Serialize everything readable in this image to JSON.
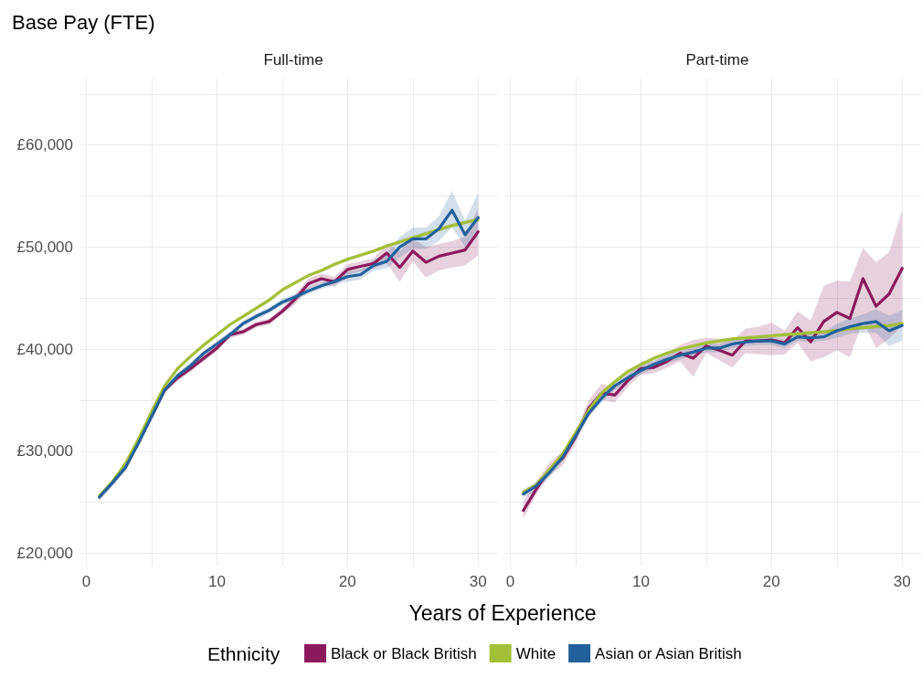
{
  "chart_data": [
    {
      "type": "line",
      "title": "Base Pay (FTE)",
      "subtitle": "Full-time",
      "xlabel": "Years of Experience",
      "legend_title": "Ethnicity",
      "legend": "bottom",
      "grid": true,
      "line_style": "solid",
      "marker": "none",
      "x": [
        1,
        2,
        3,
        4,
        5,
        6,
        7,
        8,
        9,
        10,
        11,
        12,
        13,
        14,
        15,
        16,
        17,
        18,
        19,
        20,
        21,
        22,
        23,
        24,
        25,
        26,
        27,
        28,
        29,
        30
      ],
      "xlim": [
        -0.45,
        31.45
      ],
      "xticks": [
        0,
        {
          "value": 5,
          "label": null
        },
        10,
        {
          "value": 15,
          "label": null
        },
        20,
        {
          "value": 25,
          "label": null
        },
        30
      ],
      "ylim": [
        18700,
        66500
      ],
      "yticks": [
        {
          "value": 20000,
          "label": "£20,000"
        },
        {
          "value": 25000,
          "label": null
        },
        {
          "value": 30000,
          "label": "£30,000"
        },
        {
          "value": 35000,
          "label": null
        },
        {
          "value": 40000,
          "label": "£40,000"
        },
        {
          "value": 45000,
          "label": null
        },
        {
          "value": 50000,
          "label": "£50,000"
        },
        {
          "value": 55000,
          "label": null
        },
        {
          "value": 60000,
          "label": "£60,000"
        },
        {
          "value": 65000,
          "label": null
        }
      ],
      "series": [
        {
          "name": "Black or Black British",
          "color": "#8b1a5c",
          "values": [
            null,
            null,
            null,
            null,
            33400,
            36000,
            37200,
            38100,
            39100,
            40100,
            41400,
            41700,
            42400,
            42700,
            43700,
            44900,
            46400,
            46900,
            46600,
            47800,
            48100,
            48400,
            49400,
            48000,
            49600,
            48500,
            49100,
            49400,
            49700,
            51500
          ],
          "lower": [
            25200,
            26600,
            28100,
            30500,
            33100,
            35700,
            36900,
            37800,
            38800,
            39800,
            41100,
            41400,
            42100,
            42400,
            43400,
            44400,
            45900,
            46400,
            46100,
            47300,
            47600,
            47900,
            48400,
            46600,
            48600,
            47000,
            47700,
            48000,
            48200,
            49200
          ],
          "upper": [
            25800,
            27200,
            28700,
            31100,
            33700,
            36300,
            37500,
            38400,
            39400,
            40400,
            41700,
            42000,
            42700,
            43000,
            44000,
            45400,
            46900,
            47400,
            47100,
            48300,
            48600,
            48900,
            50300,
            49600,
            50800,
            50000,
            50300,
            50600,
            51000,
            53800
          ]
        },
        {
          "name": "White",
          "color": "#a3bf38",
          "values": [
            25600,
            27000,
            28800,
            31200,
            33900,
            36400,
            38100,
            39300,
            40400,
            41400,
            42400,
            43200,
            44000,
            44800,
            45800,
            46500,
            47200,
            47700,
            48300,
            48800,
            49200,
            49600,
            50100,
            50500,
            50900,
            51300,
            51700,
            52100,
            52400,
            52700
          ],
          "lower": [
            25400,
            26800,
            28600,
            31000,
            33700,
            36200,
            37900,
            39100,
            40200,
            41200,
            42200,
            43000,
            43800,
            44600,
            45600,
            46300,
            47000,
            47500,
            48100,
            48600,
            49000,
            49400,
            49900,
            50300,
            50700,
            51100,
            51500,
            51900,
            52200,
            52500
          ],
          "upper": [
            25800,
            27200,
            29000,
            31400,
            34100,
            36600,
            38300,
            39500,
            40600,
            41600,
            42600,
            43400,
            44200,
            45000,
            46000,
            46700,
            47400,
            47900,
            48500,
            49000,
            49400,
            49800,
            50300,
            50700,
            51100,
            51500,
            51900,
            52300,
            52600,
            52900
          ]
        },
        {
          "name": "Asian or Asian British",
          "color": "#23619c",
          "values": [
            25500,
            26900,
            28400,
            30800,
            33400,
            36000,
            37400,
            38400,
            39600,
            40500,
            41400,
            42500,
            43200,
            43800,
            44600,
            45100,
            45700,
            46200,
            46600,
            47100,
            47300,
            48200,
            48600,
            50000,
            50800,
            50800,
            51800,
            53600,
            51200,
            52900
          ],
          "lower": [
            25200,
            26600,
            28100,
            30500,
            33100,
            35700,
            37100,
            38100,
            39300,
            40200,
            41100,
            42200,
            42900,
            43500,
            44300,
            44800,
            45400,
            45900,
            46300,
            46600,
            46800,
            47700,
            47900,
            49000,
            49800,
            49800,
            50600,
            51900,
            50000,
            51000
          ],
          "upper": [
            25800,
            27200,
            28700,
            31100,
            33700,
            36300,
            37700,
            38700,
            39900,
            40800,
            41700,
            42800,
            43500,
            44100,
            44900,
            45400,
            46000,
            46500,
            46900,
            47600,
            47800,
            48700,
            49400,
            51000,
            51900,
            51900,
            53000,
            55500,
            52600,
            55300
          ]
        }
      ]
    },
    {
      "type": "line",
      "subtitle": "Part-time",
      "grid": true,
      "line_style": "solid",
      "marker": "none",
      "tick_labels": "x",
      "x": [
        1,
        2,
        3,
        4,
        5,
        6,
        7,
        8,
        9,
        10,
        11,
        12,
        13,
        14,
        15,
        16,
        17,
        18,
        19,
        20,
        21,
        22,
        23,
        24,
        25,
        26,
        27,
        28,
        29,
        30
      ],
      "xlim": [
        -0.45,
        31.45
      ],
      "xticks": [
        0,
        {
          "value": 5,
          "label": null
        },
        10,
        {
          "value": 15,
          "label": null
        },
        20,
        {
          "value": 25,
          "label": null
        },
        30
      ],
      "ylim": [
        18700,
        66500
      ],
      "yticks": [
        {
          "value": 20000,
          "label": null
        },
        {
          "value": 25000,
          "label": null
        },
        {
          "value": 30000,
          "label": null
        },
        {
          "value": 35000,
          "label": null
        },
        {
          "value": 40000,
          "label": null
        },
        {
          "value": 45000,
          "label": null
        },
        {
          "value": 50000,
          "label": null
        },
        {
          "value": 55000,
          "label": null
        },
        {
          "value": 60000,
          "label": null
        },
        {
          "value": 65000,
          "label": null
        }
      ],
      "series": [
        {
          "color": "#8b1a5c",
          "values": [
            24200,
            26300,
            28200,
            29300,
            31400,
            34200,
            35700,
            35500,
            36900,
            38100,
            38200,
            38800,
            39600,
            39100,
            40300,
            39900,
            39400,
            40800,
            40800,
            40900,
            40600,
            42100,
            40700,
            42700,
            43600,
            43000,
            46900,
            44200,
            45400,
            47900
          ],
          "lower": [
            23400,
            25800,
            27600,
            28600,
            30800,
            33600,
            35000,
            34800,
            36300,
            37500,
            37600,
            38200,
            38800,
            37300,
            39600,
            38900,
            38200,
            39600,
            39500,
            39400,
            39500,
            40600,
            38800,
            39200,
            39900,
            39200,
            42800,
            40100,
            41000,
            42300
          ],
          "upper": [
            25100,
            27000,
            28900,
            30000,
            32000,
            35000,
            36600,
            36200,
            37500,
            38700,
            38800,
            39600,
            40400,
            40900,
            41100,
            41000,
            40800,
            42000,
            42200,
            42600,
            41800,
            43700,
            42800,
            46200,
            46700,
            46600,
            49900,
            48500,
            49500,
            53600
          ]
        },
        {
          "color": "#a3bf38",
          "values": [
            26000,
            26700,
            28200,
            29700,
            31800,
            34000,
            35700,
            36800,
            37800,
            38500,
            39100,
            39600,
            40000,
            40300,
            40600,
            40800,
            41000,
            41100,
            41200,
            41300,
            41400,
            41500,
            41600,
            41700,
            41800,
            42000,
            42100,
            42200,
            42300,
            42500
          ],
          "lower": [
            25800,
            26500,
            28000,
            29500,
            31600,
            33800,
            35500,
            36600,
            37600,
            38300,
            38900,
            39400,
            39800,
            40100,
            40400,
            40600,
            40800,
            40900,
            41000,
            41100,
            41200,
            41300,
            41400,
            41500,
            41600,
            41800,
            41900,
            42000,
            42100,
            42300
          ],
          "upper": [
            26200,
            26900,
            28400,
            29900,
            32000,
            34200,
            35900,
            37000,
            38000,
            38700,
            39300,
            39800,
            40200,
            40500,
            40800,
            41000,
            41200,
            41300,
            41400,
            41500,
            41600,
            41700,
            41800,
            41900,
            42000,
            42200,
            42300,
            42400,
            42500,
            42700
          ]
        },
        {
          "color": "#23619c",
          "values": [
            25800,
            26600,
            27900,
            29400,
            31500,
            33700,
            35200,
            36400,
            37200,
            37900,
            38500,
            39000,
            39400,
            39700,
            40100,
            40100,
            40500,
            40700,
            40800,
            40800,
            40500,
            41200,
            41100,
            41200,
            41800,
            42200,
            42500,
            42700,
            41800,
            42300
          ],
          "lower": [
            25400,
            26200,
            27500,
            29000,
            31100,
            33300,
            34800,
            36000,
            36800,
            37500,
            38100,
            38600,
            39000,
            39300,
            39700,
            39700,
            40100,
            40300,
            40400,
            40400,
            40100,
            40800,
            40700,
            40800,
            41100,
            41500,
            41600,
            41600,
            40300,
            40800
          ],
          "upper": [
            26200,
            27000,
            28300,
            29800,
            31900,
            34100,
            35600,
            36800,
            37600,
            38300,
            38900,
            39400,
            39800,
            40100,
            40500,
            40500,
            40900,
            41100,
            41200,
            41200,
            40900,
            41600,
            41500,
            41600,
            42500,
            43000,
            43400,
            43900,
            43300,
            43800
          ]
        }
      ]
    }
  ]
}
